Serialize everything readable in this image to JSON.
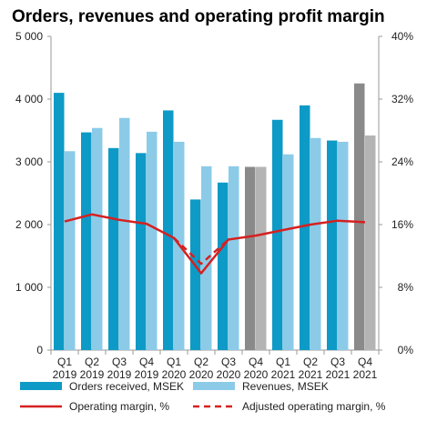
{
  "chart_data": {
    "type": "bar",
    "title": "Orders, revenues and operating profit margin",
    "categories": [
      [
        "Q1",
        "2019"
      ],
      [
        "Q2",
        "2019"
      ],
      [
        "Q3",
        "2019"
      ],
      [
        "Q4",
        "2019"
      ],
      [
        "Q1",
        "2020"
      ],
      [
        "Q2",
        "2020"
      ],
      [
        "Q3",
        "2020"
      ],
      [
        "Q4",
        "2020"
      ],
      [
        "Q1",
        "2021"
      ],
      [
        "Q2",
        "2021"
      ],
      [
        "Q3",
        "2021"
      ],
      [
        "Q4",
        "2021"
      ]
    ],
    "ylim_left": [
      0,
      5000
    ],
    "yticks_left": [
      "0",
      "1 000",
      "2 000",
      "3 000",
      "4 000",
      "5 000"
    ],
    "ylim_right": [
      0,
      40
    ],
    "yticks_right": [
      "0%",
      "8%",
      "16%",
      "24%",
      "32%",
      "40%"
    ],
    "series": [
      {
        "name": "Orders received, MSEK",
        "kind": "bar",
        "color": "#0e9ac6",
        "highlight_color": "#8a8a8a",
        "highlight_index": [
          7,
          11
        ],
        "values": [
          4100,
          3470,
          3220,
          3140,
          3820,
          2400,
          2670,
          2920,
          3670,
          3900,
          3340,
          4250
        ]
      },
      {
        "name": "Revenues, MSEK",
        "kind": "bar",
        "color": "#8ccbe8",
        "highlight_color": "#b4b4b4",
        "highlight_index": [
          7,
          11
        ],
        "values": [
          3170,
          3540,
          3700,
          3480,
          3320,
          2930,
          2930,
          2920,
          3120,
          3380,
          3320,
          3420
        ]
      },
      {
        "name": "Operating margin, %",
        "kind": "line",
        "axis": "right",
        "color": "#d62020",
        "dash": "solid",
        "values": [
          16.4,
          17.3,
          16.6,
          16.1,
          14.3,
          9.8,
          14.1,
          14.6,
          15.3,
          16.0,
          16.5,
          16.3
        ]
      },
      {
        "name": "Adjusted operating margin, %",
        "kind": "line",
        "axis": "right",
        "color": "#d62020",
        "dash": "dashed",
        "values": [
          null,
          null,
          null,
          null,
          14.3,
          11.0,
          14.1,
          null,
          null,
          null,
          null,
          null
        ]
      }
    ],
    "grid": false,
    "legend_position": "bottom"
  }
}
